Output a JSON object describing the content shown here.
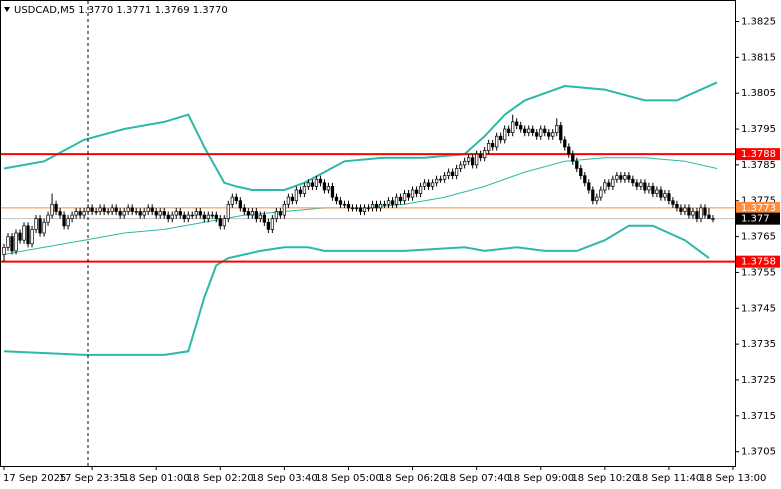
{
  "chart_data": {
    "type": "candlestick",
    "title": "USDCAD,M5  1.3770 1.3771 1.3769 1.3770",
    "xlim": [
      -1,
      182.5
    ],
    "ylim": [
      1.3701,
      1.3831
    ],
    "yticks": [
      1.3825,
      1.3815,
      1.3805,
      1.3795,
      1.3785,
      1.3775,
      1.3765,
      1.3755,
      1.3745,
      1.3735,
      1.3725,
      1.3715,
      1.3705
    ],
    "xticks": [
      {
        "value": 0,
        "label": "17 Sep 2025"
      },
      {
        "value": 22,
        "label": "17 Sep 23:35"
      },
      {
        "value": 38,
        "label": "18 Sep 01:00"
      },
      {
        "value": 54,
        "label": "18 Sep 02:20"
      },
      {
        "value": 70,
        "label": "18 Sep 03:40"
      },
      {
        "value": 86,
        "label": "18 Sep 05:00"
      },
      {
        "value": 102,
        "label": "18 Sep 06:20"
      },
      {
        "value": 118,
        "label": "18 Sep 07:40"
      },
      {
        "value": 134,
        "label": "18 Sep 09:00"
      },
      {
        "value": 150,
        "label": "18 Sep 10:20"
      },
      {
        "value": 166,
        "label": "18 Sep 11:40"
      },
      {
        "value": 182,
        "label": "18 Sep 13:00"
      }
    ],
    "up_color": "#ffffff",
    "down_color": "#000000",
    "candles": [
      [
        1.376,
        1.3763,
        1.3758,
        1.3762
      ],
      [
        1.3762,
        1.3766,
        1.3761,
        1.3765
      ],
      [
        1.3765,
        1.3766,
        1.376,
        1.3761
      ],
      [
        1.3761,
        1.3767,
        1.376,
        1.3766
      ],
      [
        1.3766,
        1.3767,
        1.3763,
        1.3764
      ],
      [
        1.3764,
        1.3769,
        1.3763,
        1.3768
      ],
      [
        1.3768,
        1.3769,
        1.3762,
        1.3763
      ],
      [
        1.3763,
        1.3768,
        1.3762,
        1.3767
      ],
      [
        1.3767,
        1.3771,
        1.3766,
        1.377
      ],
      [
        1.377,
        1.3771,
        1.3765,
        1.3766
      ],
      [
        1.3766,
        1.377,
        1.3765,
        1.3769
      ],
      [
        1.3769,
        1.3772,
        1.3768,
        1.3771
      ],
      [
        1.3771,
        1.3777,
        1.377,
        1.3774
      ],
      [
        1.3774,
        1.3775,
        1.3771,
        1.3772
      ],
      [
        1.3772,
        1.3773,
        1.377,
        1.3771
      ],
      [
        1.3771,
        1.3772,
        1.3767,
        1.3768
      ],
      [
        1.3768,
        1.3771,
        1.3767,
        1.377
      ],
      [
        1.377,
        1.3772,
        1.3769,
        1.3771
      ],
      [
        1.3771,
        1.3773,
        1.377,
        1.3772
      ],
      [
        1.3772,
        1.3773,
        1.377,
        1.3771
      ],
      [
        1.3771,
        1.3773,
        1.377,
        1.3772
      ],
      [
        1.3772,
        1.3774,
        1.3771,
        1.3773
      ],
      [
        1.3773,
        1.3774,
        1.3771,
        1.3772
      ],
      [
        1.3772,
        1.3773,
        1.3771,
        1.3772
      ],
      [
        1.3772,
        1.3774,
        1.3771,
        1.3773
      ],
      [
        1.3773,
        1.3774,
        1.3771,
        1.3772
      ],
      [
        1.3772,
        1.3773,
        1.3771,
        1.3772
      ],
      [
        1.3772,
        1.3774,
        1.3771,
        1.3773
      ],
      [
        1.3773,
        1.3774,
        1.3771,
        1.3772
      ],
      [
        1.3772,
        1.3773,
        1.377,
        1.3771
      ],
      [
        1.3771,
        1.3773,
        1.377,
        1.3772
      ],
      [
        1.3772,
        1.3774,
        1.3771,
        1.3773
      ],
      [
        1.3773,
        1.3774,
        1.3771,
        1.3772
      ],
      [
        1.3772,
        1.3773,
        1.3771,
        1.3772
      ],
      [
        1.3772,
        1.3773,
        1.377,
        1.3771
      ],
      [
        1.3771,
        1.3773,
        1.377,
        1.3772
      ],
      [
        1.3772,
        1.3774,
        1.3771,
        1.3773
      ],
      [
        1.3773,
        1.3774,
        1.3771,
        1.3772
      ],
      [
        1.3772,
        1.3773,
        1.377,
        1.3771
      ],
      [
        1.3771,
        1.3773,
        1.377,
        1.3772
      ],
      [
        1.3772,
        1.3773,
        1.377,
        1.3771
      ],
      [
        1.3771,
        1.3772,
        1.3769,
        1.377
      ],
      [
        1.377,
        1.3772,
        1.3769,
        1.3771
      ],
      [
        1.3771,
        1.3773,
        1.377,
        1.3772
      ],
      [
        1.3772,
        1.3773,
        1.377,
        1.3771
      ],
      [
        1.3771,
        1.3772,
        1.3769,
        1.377
      ],
      [
        1.377,
        1.3772,
        1.3769,
        1.3771
      ],
      [
        1.3771,
        1.3772,
        1.377,
        1.3771
      ],
      [
        1.3771,
        1.3773,
        1.377,
        1.3772
      ],
      [
        1.3772,
        1.3773,
        1.377,
        1.3771
      ],
      [
        1.3771,
        1.3772,
        1.3769,
        1.377
      ],
      [
        1.377,
        1.3772,
        1.3769,
        1.3771
      ],
      [
        1.3771,
        1.3772,
        1.377,
        1.3771
      ],
      [
        1.3771,
        1.3772,
        1.3769,
        1.377
      ],
      [
        1.377,
        1.3771,
        1.3767,
        1.3768
      ],
      [
        1.3768,
        1.3771,
        1.3767,
        1.377
      ],
      [
        1.377,
        1.3775,
        1.3769,
        1.3774
      ],
      [
        1.3774,
        1.3777,
        1.3773,
        1.3776
      ],
      [
        1.3776,
        1.3777,
        1.3774,
        1.3775
      ],
      [
        1.3775,
        1.3776,
        1.3772,
        1.3773
      ],
      [
        1.3773,
        1.3774,
        1.3771,
        1.3772
      ],
      [
        1.3772,
        1.3773,
        1.377,
        1.3771
      ],
      [
        1.3771,
        1.3773,
        1.377,
        1.3772
      ],
      [
        1.3772,
        1.3773,
        1.3769,
        1.377
      ],
      [
        1.377,
        1.3772,
        1.3769,
        1.3771
      ],
      [
        1.3771,
        1.3772,
        1.3768,
        1.3769
      ],
      [
        1.3769,
        1.377,
        1.3766,
        1.3767
      ],
      [
        1.3767,
        1.3771,
        1.3766,
        1.377
      ],
      [
        1.377,
        1.3773,
        1.3769,
        1.3772
      ],
      [
        1.3772,
        1.3773,
        1.377,
        1.3771
      ],
      [
        1.3771,
        1.3775,
        1.377,
        1.3774
      ],
      [
        1.3774,
        1.3777,
        1.3773,
        1.3776
      ],
      [
        1.3776,
        1.3777,
        1.3774,
        1.3775
      ],
      [
        1.3775,
        1.3779,
        1.3774,
        1.3778
      ],
      [
        1.3778,
        1.3779,
        1.3776,
        1.3777
      ],
      [
        1.3777,
        1.378,
        1.3776,
        1.3779
      ],
      [
        1.3779,
        1.3781,
        1.3778,
        1.378
      ],
      [
        1.378,
        1.3781,
        1.3778,
        1.3779
      ],
      [
        1.3779,
        1.3782,
        1.3778,
        1.3781
      ],
      [
        1.3781,
        1.3782,
        1.3779,
        1.378
      ],
      [
        1.378,
        1.3781,
        1.3777,
        1.3778
      ],
      [
        1.3778,
        1.378,
        1.3777,
        1.3779
      ],
      [
        1.3779,
        1.378,
        1.3775,
        1.3776
      ],
      [
        1.3776,
        1.3777,
        1.3774,
        1.3775
      ],
      [
        1.3775,
        1.3776,
        1.3773,
        1.3774
      ],
      [
        1.3774,
        1.3775,
        1.3773,
        1.3774
      ],
      [
        1.3774,
        1.3775,
        1.3772,
        1.3773
      ],
      [
        1.3773,
        1.3774,
        1.3772,
        1.3773
      ],
      [
        1.3773,
        1.3774,
        1.3772,
        1.3773
      ],
      [
        1.3773,
        1.3774,
        1.3771,
        1.3772
      ],
      [
        1.3772,
        1.3774,
        1.3771,
        1.3773
      ],
      [
        1.3773,
        1.3774,
        1.3772,
        1.3773
      ],
      [
        1.3773,
        1.3775,
        1.3772,
        1.3774
      ],
      [
        1.3774,
        1.3775,
        1.3772,
        1.3773
      ],
      [
        1.3773,
        1.3775,
        1.3772,
        1.3774
      ],
      [
        1.3774,
        1.3775,
        1.3773,
        1.3774
      ],
      [
        1.3774,
        1.3776,
        1.3773,
        1.3775
      ],
      [
        1.3775,
        1.3776,
        1.3773,
        1.3774
      ],
      [
        1.3774,
        1.3777,
        1.3773,
        1.3776
      ],
      [
        1.3776,
        1.3777,
        1.3774,
        1.3775
      ],
      [
        1.3775,
        1.3778,
        1.3774,
        1.3777
      ],
      [
        1.3777,
        1.3778,
        1.3775,
        1.3776
      ],
      [
        1.3776,
        1.3779,
        1.3775,
        1.3778
      ],
      [
        1.3778,
        1.3779,
        1.3776,
        1.3777
      ],
      [
        1.3777,
        1.378,
        1.3776,
        1.3779
      ],
      [
        1.3779,
        1.3781,
        1.3778,
        1.378
      ],
      [
        1.378,
        1.3781,
        1.3778,
        1.3779
      ],
      [
        1.3779,
        1.3781,
        1.3778,
        1.378
      ],
      [
        1.378,
        1.3782,
        1.3779,
        1.3781
      ],
      [
        1.3781,
        1.3782,
        1.378,
        1.3781
      ],
      [
        1.3781,
        1.3783,
        1.378,
        1.3782
      ],
      [
        1.3782,
        1.3784,
        1.3781,
        1.3783
      ],
      [
        1.3783,
        1.3784,
        1.3781,
        1.3782
      ],
      [
        1.3782,
        1.3785,
        1.3781,
        1.3784
      ],
      [
        1.3784,
        1.3786,
        1.3783,
        1.3785
      ],
      [
        1.3785,
        1.3787,
        1.3784,
        1.3786
      ],
      [
        1.3786,
        1.3788,
        1.3785,
        1.3787
      ],
      [
        1.3787,
        1.3788,
        1.3784,
        1.3785
      ],
      [
        1.3785,
        1.3789,
        1.3784,
        1.3788
      ],
      [
        1.3788,
        1.3789,
        1.3786,
        1.3787
      ],
      [
        1.3787,
        1.379,
        1.3786,
        1.3789
      ],
      [
        1.3789,
        1.3792,
        1.3788,
        1.3791
      ],
      [
        1.3791,
        1.3792,
        1.3789,
        1.379
      ],
      [
        1.379,
        1.3794,
        1.3789,
        1.3793
      ],
      [
        1.3793,
        1.3794,
        1.3791,
        1.3792
      ],
      [
        1.3792,
        1.3796,
        1.3791,
        1.3795
      ],
      [
        1.3795,
        1.3796,
        1.3793,
        1.3794
      ],
      [
        1.3794,
        1.3799,
        1.3793,
        1.3797
      ],
      [
        1.3797,
        1.3798,
        1.3795,
        1.3796
      ],
      [
        1.3796,
        1.3797,
        1.3794,
        1.3795
      ],
      [
        1.3795,
        1.3796,
        1.3793,
        1.3794
      ],
      [
        1.3794,
        1.3796,
        1.3793,
        1.3795
      ],
      [
        1.3795,
        1.3796,
        1.3793,
        1.3794
      ],
      [
        1.3794,
        1.3795,
        1.3792,
        1.3793
      ],
      [
        1.3793,
        1.3796,
        1.3792,
        1.3795
      ],
      [
        1.3795,
        1.3796,
        1.3793,
        1.3794
      ],
      [
        1.3794,
        1.3795,
        1.3792,
        1.3793
      ],
      [
        1.3793,
        1.3795,
        1.3792,
        1.3794
      ],
      [
        1.3794,
        1.3798,
        1.3793,
        1.3796
      ],
      [
        1.3796,
        1.3797,
        1.3791,
        1.3792
      ],
      [
        1.3792,
        1.3793,
        1.3789,
        1.379
      ],
      [
        1.379,
        1.3791,
        1.3787,
        1.3788
      ],
      [
        1.3788,
        1.3789,
        1.3785,
        1.3786
      ],
      [
        1.3786,
        1.3787,
        1.3783,
        1.3784
      ],
      [
        1.3784,
        1.3785,
        1.3781,
        1.3782
      ],
      [
        1.3782,
        1.3783,
        1.3779,
        1.378
      ],
      [
        1.378,
        1.3781,
        1.3777,
        1.3778
      ],
      [
        1.3778,
        1.3779,
        1.3774,
        1.3775
      ],
      [
        1.3775,
        1.3777,
        1.3774,
        1.3776
      ],
      [
        1.3776,
        1.3779,
        1.3775,
        1.3778
      ],
      [
        1.3778,
        1.3781,
        1.3777,
        1.378
      ],
      [
        1.378,
        1.3781,
        1.3778,
        1.3779
      ],
      [
        1.3779,
        1.3782,
        1.3778,
        1.3781
      ],
      [
        1.3781,
        1.3783,
        1.378,
        1.3782
      ],
      [
        1.3782,
        1.3783,
        1.378,
        1.3781
      ],
      [
        1.3781,
        1.3783,
        1.378,
        1.3782
      ],
      [
        1.3782,
        1.3783,
        1.378,
        1.3781
      ],
      [
        1.3781,
        1.3782,
        1.3779,
        1.378
      ],
      [
        1.378,
        1.3781,
        1.3778,
        1.3779
      ],
      [
        1.3779,
        1.3781,
        1.3778,
        1.378
      ],
      [
        1.378,
        1.3781,
        1.3777,
        1.3778
      ],
      [
        1.3778,
        1.378,
        1.3777,
        1.3779
      ],
      [
        1.3779,
        1.378,
        1.3776,
        1.3777
      ],
      [
        1.3777,
        1.3779,
        1.3776,
        1.3778
      ],
      [
        1.3778,
        1.3779,
        1.3775,
        1.3776
      ],
      [
        1.3776,
        1.3778,
        1.3775,
        1.3777
      ],
      [
        1.3777,
        1.3778,
        1.3774,
        1.3775
      ],
      [
        1.3775,
        1.3776,
        1.3773,
        1.3774
      ],
      [
        1.3774,
        1.3775,
        1.3772,
        1.3773
      ],
      [
        1.3773,
        1.3774,
        1.3771,
        1.3772
      ],
      [
        1.3772,
        1.3774,
        1.3771,
        1.3773
      ],
      [
        1.3773,
        1.3774,
        1.377,
        1.3771
      ],
      [
        1.3771,
        1.3773,
        1.377,
        1.3772
      ],
      [
        1.3772,
        1.3773,
        1.3769,
        1.377
      ],
      [
        1.377,
        1.3774,
        1.3769,
        1.3773
      ],
      [
        1.3773,
        1.3774,
        1.377,
        1.3771
      ],
      [
        1.3771,
        1.3773,
        1.377,
        1.377
      ],
      [
        1.377,
        1.3771,
        1.3769,
        1.377
      ]
    ],
    "bands": [
      {
        "color": "#2db8a8",
        "width": 2,
        "x": [
          0,
          10,
          20,
          30,
          40,
          46,
          50,
          55,
          58,
          62,
          70,
          75,
          80,
          85,
          95,
          105,
          115,
          120,
          125,
          130,
          140,
          150,
          160,
          168,
          172,
          178
        ],
        "values": [
          1.3784,
          1.3786,
          1.3792,
          1.3795,
          1.3797,
          1.3799,
          1.379,
          1.378,
          1.3779,
          1.3778,
          1.3778,
          1.378,
          1.3783,
          1.3786,
          1.3787,
          1.3787,
          1.3788,
          1.3793,
          1.3799,
          1.3803,
          1.3807,
          1.3806,
          1.3803,
          1.3803,
          1.3805,
          1.3808
        ]
      },
      {
        "color": "#2db8a8",
        "width": 1,
        "x": [
          0,
          10,
          20,
          30,
          40,
          50,
          60,
          70,
          80,
          90,
          100,
          110,
          120,
          130,
          140,
          150,
          160,
          170,
          178
        ],
        "values": [
          1.376,
          1.3762,
          1.3764,
          1.3766,
          1.3767,
          1.3769,
          1.3771,
          1.3772,
          1.3773,
          1.3773,
          1.3774,
          1.3776,
          1.3779,
          1.3783,
          1.3786,
          1.3787,
          1.3787,
          1.3786,
          1.3784
        ]
      },
      {
        "color": "#2db8a8",
        "width": 2,
        "x": [
          0,
          20,
          30,
          40,
          46,
          50,
          53,
          56,
          60,
          64,
          70,
          76,
          80,
          90,
          100,
          115,
          120,
          128,
          135,
          143,
          150,
          156,
          162,
          170,
          176
        ],
        "values": [
          1.3733,
          1.3732,
          1.3732,
          1.3732,
          1.3733,
          1.3748,
          1.3757,
          1.3759,
          1.376,
          1.3761,
          1.3762,
          1.3762,
          1.3761,
          1.3761,
          1.3761,
          1.3762,
          1.3761,
          1.3762,
          1.3761,
          1.3761,
          1.3764,
          1.3768,
          1.3768,
          1.3764,
          1.3759
        ]
      }
    ],
    "levels": [
      {
        "value": 1.3788,
        "line_color": "#ff0000",
        "label_color": "#ff0000",
        "text_color": "#ffffff",
        "width": 2
      },
      {
        "value": 1.3758,
        "line_color": "#ff0000",
        "label_color": "#ff0000",
        "text_color": "#ffffff",
        "width": 2
      },
      {
        "value": 1.3773,
        "line_color": "#ff8c3a",
        "label_color": "#ff8c3a",
        "text_color": "#ffffff",
        "width": 1
      },
      {
        "value": 1.377,
        "line_color": "#c0c0c0",
        "label_color": "#000000",
        "text_color": "#ffffff",
        "width": 1
      }
    ]
  }
}
